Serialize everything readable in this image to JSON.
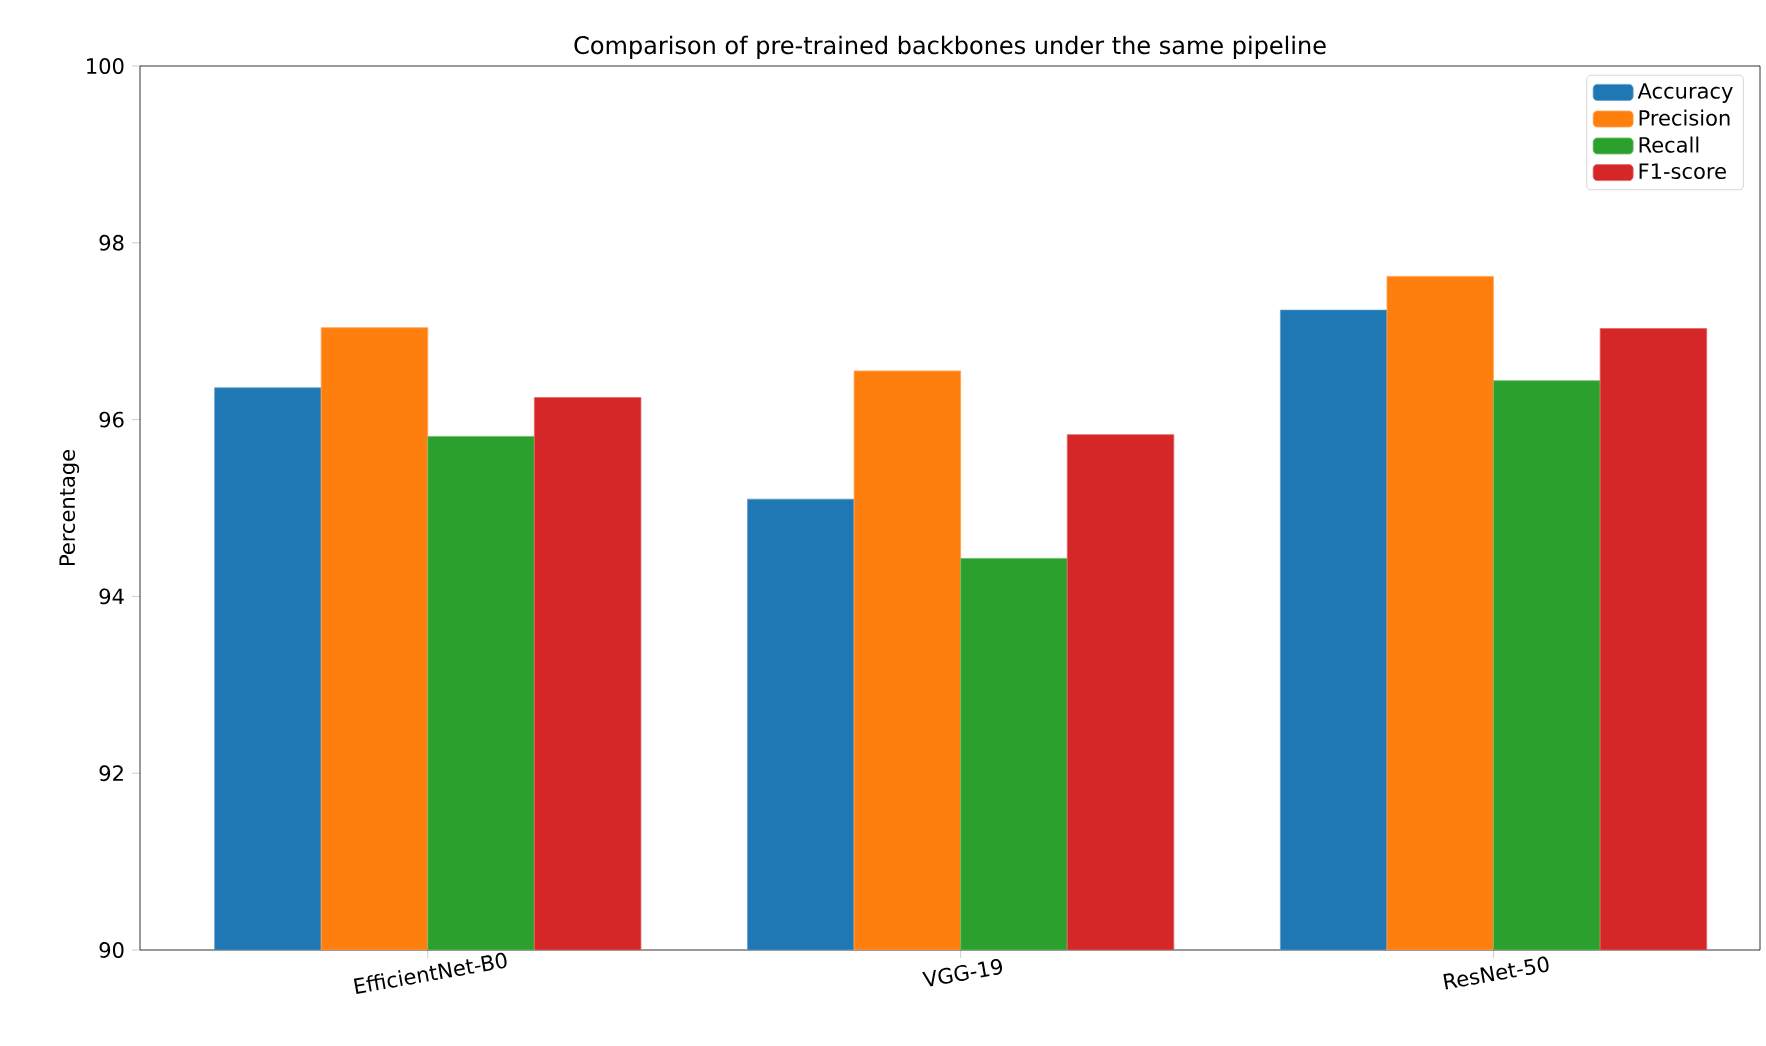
{
  "chart_data": {
    "type": "bar",
    "title": "Comparison of pre-trained backbones under the same pipeline",
    "ylabel": "Percentage",
    "categories": [
      "EfficientNet-B0",
      "VGG-19",
      "ResNet-50"
    ],
    "series": [
      {
        "name": "Accuracy",
        "color": "#1f77b4",
        "values": [
          96.36,
          95.1,
          97.24
        ]
      },
      {
        "name": "Precision",
        "color": "#ff7f0e",
        "values": [
          97.04,
          96.55,
          97.62
        ]
      },
      {
        "name": "Recall",
        "color": "#2ca02c",
        "values": [
          95.81,
          94.43,
          96.44
        ]
      },
      {
        "name": "F1-score",
        "color": "#d62728",
        "values": [
          96.25,
          95.83,
          97.03
        ]
      }
    ],
    "ylim": [
      90,
      100
    ],
    "yticks": [
      90,
      92,
      94,
      96,
      98,
      100
    ],
    "grid": false,
    "legend": "top right"
  }
}
